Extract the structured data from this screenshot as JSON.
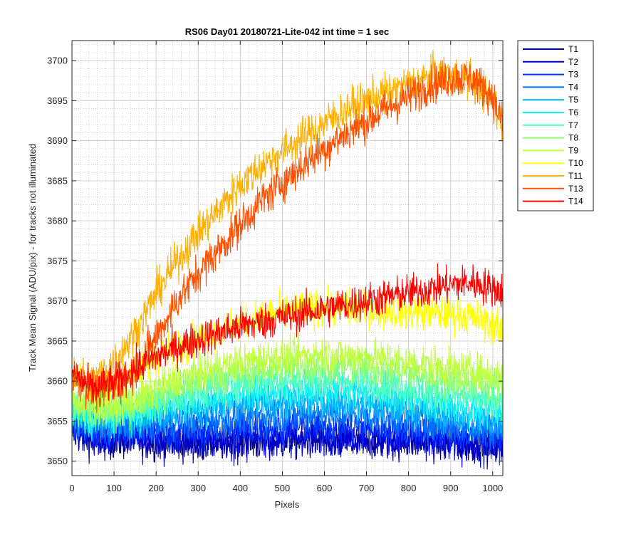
{
  "chart_data": {
    "type": "line",
    "title": "RS06 Day01 20180721-Lite-042 int time = 1 sec",
    "xlabel": "Pixels",
    "ylabel": "Track Mean Signal (ADU/pix) - for tracks not illuminated",
    "xlim": [
      0,
      1024
    ],
    "ylim": [
      3648.2,
      3702.5
    ],
    "xticks": [
      0,
      100,
      200,
      300,
      400,
      500,
      600,
      700,
      800,
      900,
      1000
    ],
    "yticks": [
      3650,
      3655,
      3660,
      3665,
      3670,
      3675,
      3680,
      3685,
      3690,
      3695,
      3700
    ],
    "grid": "major and minor",
    "legend_position": "outside-top-right",
    "noise_note": "each series is a noisy per-pixel trace; baseline values below",
    "x": [
      0,
      50,
      100,
      150,
      200,
      250,
      300,
      350,
      400,
      450,
      500,
      550,
      600,
      650,
      700,
      750,
      800,
      850,
      900,
      950,
      1000,
      1024
    ],
    "series": [
      {
        "name": "T1",
        "color": "#00008f",
        "noise": 1.6,
        "values": [
          3653.5,
          3652.5,
          3652.5,
          3652.5,
          3652.3,
          3652.2,
          3652.2,
          3652.2,
          3652.3,
          3652.3,
          3652.4,
          3652.5,
          3652.5,
          3652.5,
          3652.5,
          3652.5,
          3652.5,
          3652.3,
          3652.2,
          3652.0,
          3651.8,
          3651.7
        ]
      },
      {
        "name": "T2",
        "color": "#0000d8",
        "noise": 1.6,
        "values": [
          3654.5,
          3653.0,
          3652.8,
          3653.0,
          3652.8,
          3652.6,
          3652.6,
          3652.7,
          3652.8,
          3652.9,
          3653.0,
          3653.1,
          3653.1,
          3653.0,
          3652.9,
          3652.8,
          3652.6,
          3652.4,
          3652.2,
          3652.0,
          3651.8,
          3651.6
        ]
      },
      {
        "name": "T3",
        "color": "#0030ff",
        "noise": 1.6,
        "values": [
          3655.0,
          3653.8,
          3653.6,
          3653.8,
          3653.7,
          3653.6,
          3653.6,
          3653.8,
          3654.0,
          3654.2,
          3654.3,
          3654.4,
          3654.4,
          3654.3,
          3654.2,
          3654.0,
          3653.8,
          3653.6,
          3653.4,
          3653.2,
          3653.0,
          3652.9
        ]
      },
      {
        "name": "T4",
        "color": "#0070ff",
        "noise": 1.6,
        "values": [
          3655.5,
          3654.5,
          3654.3,
          3654.6,
          3654.8,
          3654.9,
          3655.1,
          3655.3,
          3655.5,
          3655.7,
          3655.8,
          3655.9,
          3655.9,
          3655.8,
          3655.6,
          3655.4,
          3655.1,
          3654.8,
          3654.5,
          3654.2,
          3653.9,
          3653.8
        ]
      },
      {
        "name": "T5",
        "color": "#00b0ff",
        "noise": 1.6,
        "values": [
          3656.0,
          3655.2,
          3655.0,
          3655.4,
          3655.8,
          3656.2,
          3656.5,
          3656.8,
          3657.0,
          3657.2,
          3657.3,
          3657.4,
          3657.4,
          3657.3,
          3657.1,
          3656.8,
          3656.5,
          3656.1,
          3655.7,
          3655.3,
          3654.9,
          3654.7
        ]
      },
      {
        "name": "T6",
        "color": "#10f0f0",
        "noise": 1.6,
        "values": [
          3656.5,
          3655.6,
          3655.5,
          3656.0,
          3656.6,
          3657.2,
          3657.6,
          3658.0,
          3658.3,
          3658.5,
          3658.7,
          3658.8,
          3658.8,
          3658.7,
          3658.5,
          3658.2,
          3657.8,
          3657.4,
          3657.0,
          3656.5,
          3656.0,
          3655.8
        ]
      },
      {
        "name": "T7",
        "color": "#50ffc0",
        "noise": 1.6,
        "values": [
          3657.0,
          3656.0,
          3656.0,
          3656.6,
          3657.4,
          3658.2,
          3658.8,
          3659.3,
          3659.7,
          3660.0,
          3660.2,
          3660.3,
          3660.3,
          3660.2,
          3660.0,
          3659.7,
          3659.3,
          3658.9,
          3658.4,
          3657.9,
          3657.3,
          3657.0
        ]
      },
      {
        "name": "T8",
        "color": "#8fff70",
        "noise": 1.6,
        "values": [
          3657.5,
          3656.4,
          3656.4,
          3657.1,
          3658.2,
          3659.2,
          3660.0,
          3660.6,
          3661.0,
          3661.4,
          3661.6,
          3661.8,
          3661.9,
          3661.8,
          3661.6,
          3661.4,
          3661.1,
          3660.7,
          3660.3,
          3659.9,
          3659.5,
          3659.3
        ]
      },
      {
        "name": "T9",
        "color": "#c0ff40",
        "noise": 1.6,
        "values": [
          3658.0,
          3656.8,
          3656.8,
          3657.6,
          3659.0,
          3660.2,
          3661.0,
          3661.7,
          3662.2,
          3662.7,
          3663.0,
          3663.2,
          3663.3,
          3663.2,
          3663.0,
          3662.7,
          3662.4,
          3662.0,
          3661.6,
          3661.2,
          3660.8,
          3660.6
        ]
      },
      {
        "name": "T10",
        "color": "#ffff00",
        "noise": 1.6,
        "values": [
          3661.0,
          3659.0,
          3659.5,
          3661.5,
          3663.0,
          3664.3,
          3665.3,
          3666.3,
          3667.2,
          3668.0,
          3668.6,
          3669.0,
          3669.2,
          3669.2,
          3669.0,
          3668.8,
          3668.6,
          3668.5,
          3668.4,
          3668.0,
          3667.0,
          3666.2
        ]
      },
      {
        "name": "T11",
        "color": "#ffb000",
        "noise": 1.7,
        "values": [
          3661.0,
          3660.0,
          3662.5,
          3666.0,
          3671.0,
          3675.0,
          3678.5,
          3681.5,
          3684.5,
          3686.8,
          3688.7,
          3690.5,
          3692.2,
          3693.8,
          3695.0,
          3696.0,
          3697.0,
          3698.0,
          3698.3,
          3697.6,
          3695.0,
          3692.0
        ]
      },
      {
        "name": "T13",
        "color": "#ff5000",
        "noise": 1.7,
        "values": [
          3661.0,
          3658.5,
          3659.0,
          3661.5,
          3665.5,
          3670.0,
          3673.5,
          3676.5,
          3679.5,
          3682.5,
          3684.8,
          3687.0,
          3689.0,
          3690.8,
          3692.5,
          3694.0,
          3695.5,
          3697.0,
          3697.8,
          3697.8,
          3695.5,
          3692.0
        ]
      },
      {
        "name": "T14",
        "color": "#ff0000",
        "noise": 1.6,
        "values": [
          3661.0,
          3659.0,
          3659.8,
          3661.5,
          3663.0,
          3664.2,
          3665.2,
          3666.0,
          3666.8,
          3667.4,
          3668.0,
          3668.5,
          3669.0,
          3669.5,
          3670.0,
          3670.5,
          3671.0,
          3671.5,
          3672.0,
          3672.3,
          3671.6,
          3671.2
        ]
      }
    ]
  }
}
